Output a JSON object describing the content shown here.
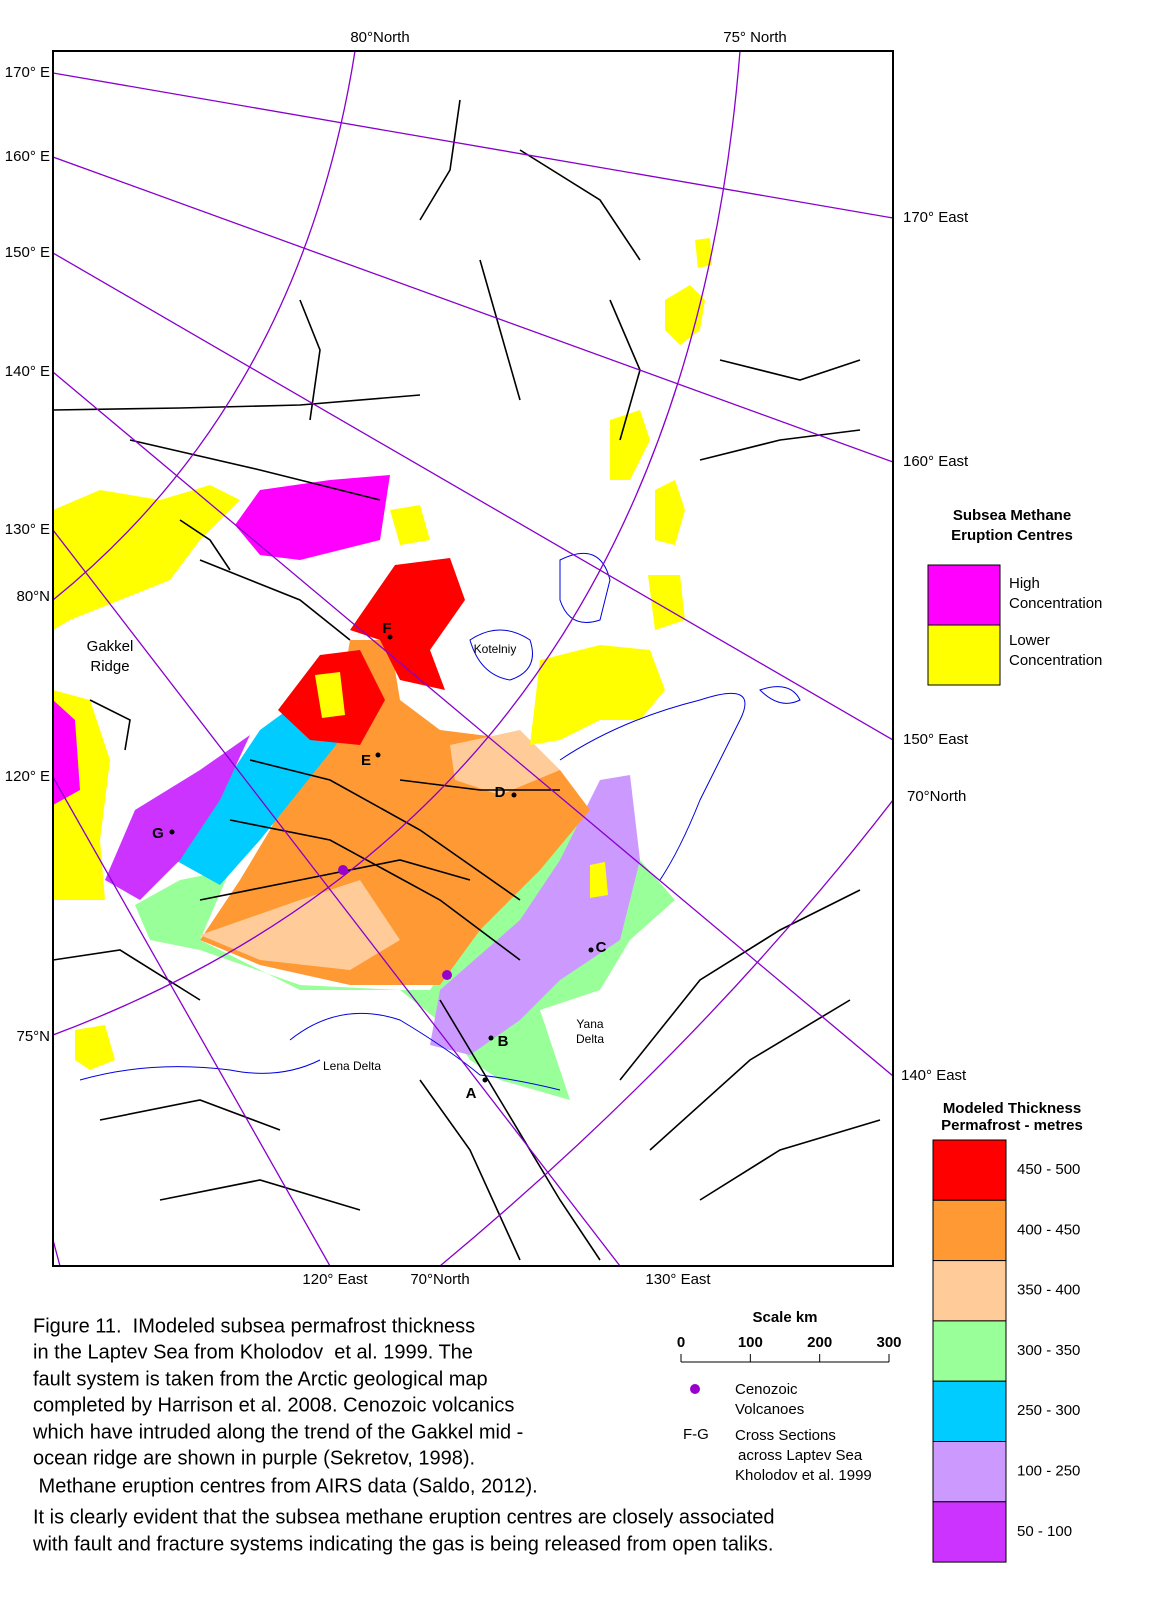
{
  "map": {
    "top_labels": [
      "80°North",
      "75° North"
    ],
    "left_labels": [
      "170° E",
      "160° E",
      "150° E",
      "140° E",
      "130° E",
      "80°N",
      "120° E",
      "75°N"
    ],
    "right_labels": [
      "170° East",
      "160° East",
      "150° East",
      "70°North",
      "140° East"
    ],
    "bottom_labels": [
      "120° East",
      "70°North",
      "130° East"
    ],
    "places": {
      "gakkel": [
        "Gakkel",
        "Ridge"
      ],
      "kotelniy": "Kotelniy",
      "yana": [
        "Yana",
        "Delta"
      ],
      "lena": "Lena Delta"
    },
    "points": [
      "A",
      "B",
      "C",
      "D",
      "E",
      "F",
      "G"
    ]
  },
  "methane_legend": {
    "title": [
      "Subsea Methane",
      "Eruption Centres"
    ],
    "items": [
      {
        "label": [
          "High",
          "Concentration"
        ],
        "color": "#ff00ff"
      },
      {
        "label": [
          "Lower",
          "Concentration"
        ],
        "color": "#ffff00"
      }
    ]
  },
  "thickness_legend": {
    "title": [
      "Modeled Thickness",
      "Permafrost - metres"
    ],
    "items": [
      {
        "label": "450 - 500",
        "color": "#ff0000"
      },
      {
        "label": "400 - 450",
        "color": "#ff9933"
      },
      {
        "label": "350 - 400",
        "color": "#ffcc99"
      },
      {
        "label": "300 - 350",
        "color": "#99ff99"
      },
      {
        "label": "250 - 300",
        "color": "#00ccff"
      },
      {
        "label": "100 - 250",
        "color": "#cc99ff"
      },
      {
        "label": "50 - 100",
        "color": "#cc33ff"
      }
    ]
  },
  "scale": {
    "title": "Scale km",
    "xlim": [
      0,
      300
    ],
    "ticks": [
      0,
      100,
      200,
      300
    ]
  },
  "key": {
    "volcano": {
      "label": [
        "Cenozoic",
        "Volcanoes"
      ],
      "color": "#9900cc"
    },
    "section_code": "F-G",
    "section": [
      "Cross Sections",
      "across Laptev Sea",
      "Kholodov et al. 1999"
    ]
  },
  "caption": [
    "Figure 11.  IModeled subsea permafrost thickness",
    "in the Laptev Sea from Kholodov  et al. 1999. The",
    "fault system is taken from the Arctic geological map",
    "completed by Harrison et al. 2008. Cenozoic volcanics",
    "which have intruded along the trend of the Gakkel mid -",
    "ocean ridge are shown in purple (Sekretov, 1998).",
    " Methane eruption centres from AIRS data (Saldo, 2012).",
    "It is clearly evident that the subsea methane eruption centres are closely associated",
    "with fault and fracture systems indicating the gas is being released from open taliks."
  ]
}
